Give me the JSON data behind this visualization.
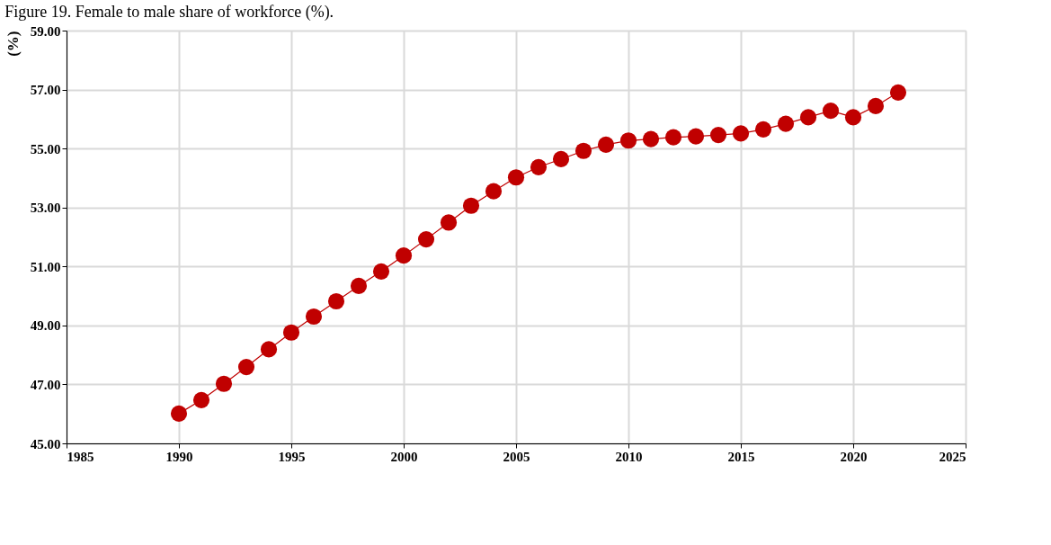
{
  "chart_data": {
    "type": "line",
    "title": "Figure 19. Female to male share of workforce (%).",
    "ylabel": "(%)",
    "x": [
      1990,
      1991,
      1992,
      1993,
      1994,
      1995,
      1996,
      1997,
      1998,
      1999,
      2000,
      2001,
      2002,
      2003,
      2004,
      2005,
      2006,
      2007,
      2008,
      2009,
      2010,
      2011,
      2012,
      2013,
      2014,
      2015,
      2016,
      2017,
      2018,
      2019,
      2020,
      2021,
      2022
    ],
    "series": [
      {
        "color": "#c00000",
        "values": [
          46.01,
          46.47,
          47.02,
          47.59,
          48.19,
          48.76,
          49.3,
          49.82,
          50.34,
          50.83,
          51.37,
          51.92,
          52.49,
          53.06,
          53.55,
          54.02,
          54.37,
          54.64,
          54.92,
          55.13,
          55.27,
          55.32,
          55.38,
          55.41,
          55.46,
          55.51,
          55.65,
          55.84,
          56.06,
          56.28,
          56.06,
          56.44,
          56.9
        ]
      }
    ],
    "xlim": [
      1985,
      2025
    ],
    "xticks": [
      1985,
      1990,
      1995,
      2000,
      2005,
      2010,
      2015,
      2020,
      2025
    ],
    "ylim": [
      45,
      59
    ],
    "yticks": [
      {
        "value": 45,
        "label": "45.00"
      },
      {
        "value": 47,
        "label": "47.00"
      },
      {
        "value": 49,
        "label": "49.00"
      },
      {
        "value": 51,
        "label": "51.00"
      },
      {
        "value": 53,
        "label": "53.00"
      },
      {
        "value": 55,
        "label": "55.00"
      },
      {
        "value": 57,
        "label": "57.00"
      },
      {
        "value": 59,
        "label": "59.00"
      }
    ],
    "grid": true,
    "marker": "circle",
    "line_style": "solid"
  }
}
